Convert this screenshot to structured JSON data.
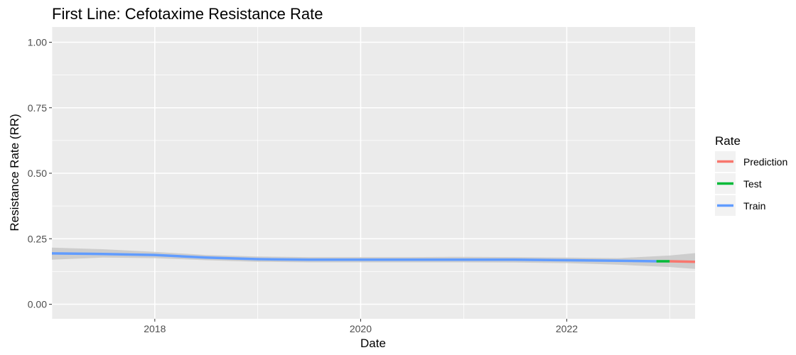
{
  "chart_data": {
    "type": "line",
    "title": "First Line: Cefotaxime Resistance Rate",
    "xlabel": "Date",
    "ylabel": "Resistance Rate (RR)",
    "ylim": [
      0,
      1
    ],
    "y_ticks": [
      0.0,
      0.25,
      0.5,
      0.75,
      1.0
    ],
    "y_tick_labels": [
      "0.00",
      "0.25",
      "0.50",
      "0.75",
      "1.00"
    ],
    "x_ticks": [
      "2018-01-01",
      "2020-01-01",
      "2022-01-01"
    ],
    "x_tick_labels": [
      "2018",
      "2020",
      "2022"
    ],
    "xlim": [
      "2017-01-01",
      "2023-04-01"
    ],
    "grid": true,
    "legend": {
      "title": "Rate",
      "placement": "right",
      "entries": [
        "Prediction",
        "Test",
        "Train"
      ]
    },
    "colors": {
      "Prediction": "#F8766D",
      "Test": "#00BA38",
      "Train": "#619CFF",
      "band": "#C8C8C8",
      "panel": "#EBEBEB",
      "grid": "#FFFFFF"
    },
    "confidence_band": {
      "x": [
        "2017-01-01",
        "2017-07-01",
        "2018-01-01",
        "2018-07-01",
        "2019-01-01",
        "2019-07-01",
        "2020-01-01",
        "2020-07-01",
        "2021-01-01",
        "2021-07-01",
        "2022-01-01",
        "2022-07-01",
        "2023-01-01",
        "2023-04-01"
      ],
      "lower": [
        0.17,
        0.178,
        0.176,
        0.168,
        0.162,
        0.16,
        0.16,
        0.16,
        0.16,
        0.159,
        0.157,
        0.151,
        0.142,
        0.135
      ],
      "upper": [
        0.216,
        0.21,
        0.2,
        0.188,
        0.182,
        0.18,
        0.18,
        0.18,
        0.181,
        0.18,
        0.178,
        0.176,
        0.186,
        0.195
      ]
    },
    "series": [
      {
        "name": "Train",
        "x": [
          "2017-01-01",
          "2017-07-01",
          "2018-01-01",
          "2018-07-01",
          "2019-01-01",
          "2019-07-01",
          "2020-01-01",
          "2020-07-01",
          "2021-01-01",
          "2021-07-01",
          "2022-01-01",
          "2022-07-01",
          "2022-11-15"
        ],
        "y": [
          0.194,
          0.192,
          0.188,
          0.178,
          0.172,
          0.17,
          0.17,
          0.17,
          0.17,
          0.17,
          0.168,
          0.166,
          0.164
        ]
      },
      {
        "name": "Test",
        "x": [
          "2022-11-15",
          "2023-01-01"
        ],
        "y": [
          0.164,
          0.164
        ]
      },
      {
        "name": "Prediction",
        "x": [
          "2023-01-01",
          "2023-04-01"
        ],
        "y": [
          0.164,
          0.162
        ]
      }
    ]
  }
}
